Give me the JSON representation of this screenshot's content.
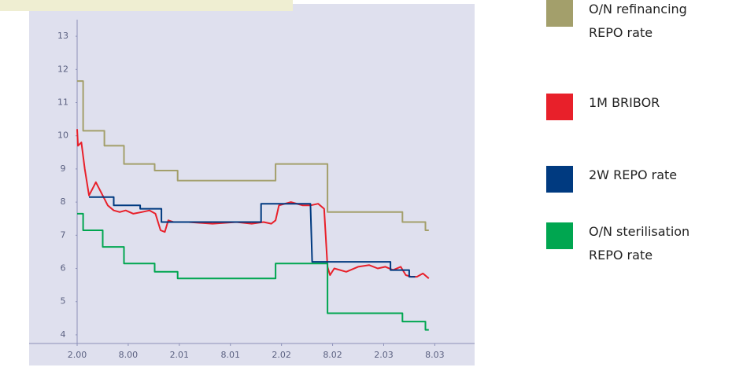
{
  "chart_data": {
    "type": "line",
    "xlim": [
      0,
      46.4
    ],
    "ylim": [
      3.75,
      13.5
    ],
    "xticks": [
      {
        "value": 0,
        "label": "2.00"
      },
      {
        "value": 6,
        "label": "8.00"
      },
      {
        "value": 12,
        "label": "2.01"
      },
      {
        "value": 18,
        "label": "8.01"
      },
      {
        "value": 24,
        "label": "2.02"
      },
      {
        "value": 30,
        "label": "8.02"
      },
      {
        "value": 36,
        "label": "2.03"
      },
      {
        "value": 42,
        "label": "8.03"
      }
    ],
    "yticks": [
      4,
      5,
      6,
      7,
      8,
      9,
      10,
      11,
      12,
      13
    ],
    "series": [
      {
        "name": "O/N refinancing REPO rate",
        "color": "#a39f6b",
        "x": [
          0,
          0.7,
          0.7,
          3.2,
          3.2,
          5.5,
          5.5,
          9.1,
          9.1,
          11.8,
          11.8,
          23.3,
          23.3,
          29.4,
          29.4,
          38.2,
          38.2,
          40.9,
          40.9,
          41.3
        ],
        "values": [
          11.65,
          11.65,
          10.15,
          10.15,
          9.7,
          9.7,
          9.15,
          9.15,
          8.95,
          8.95,
          8.65,
          8.65,
          9.15,
          9.15,
          7.7,
          7.7,
          7.4,
          7.4,
          7.15,
          7.15
        ]
      },
      {
        "name": "1M BRIBOR",
        "color": "#e8202a",
        "x": [
          0,
          0.1,
          0.5,
          0.9,
          1.4,
          1.8,
          2.2,
          2.6,
          3.0,
          3.6,
          4.3,
          5.0,
          5.7,
          6.6,
          7.6,
          8.5,
          9.2,
          9.8,
          10.3,
          10.7,
          11.3,
          13.1,
          15.9,
          18.7,
          20.5,
          21.9,
          22.8,
          23.3,
          23.7,
          25.1,
          26.5,
          27.4,
          28.3,
          29.0,
          29.4,
          29.7,
          30.2,
          31.6,
          33.0,
          34.3,
          35.3,
          36.2,
          37.1,
          38.0,
          38.6,
          39.2,
          39.9,
          40.6,
          41.3
        ],
        "values": [
          10.2,
          9.7,
          9.8,
          9.0,
          8.2,
          8.4,
          8.6,
          8.4,
          8.2,
          7.9,
          7.75,
          7.7,
          7.75,
          7.65,
          7.7,
          7.75,
          7.65,
          7.15,
          7.1,
          7.45,
          7.4,
          7.4,
          7.35,
          7.4,
          7.35,
          7.4,
          7.35,
          7.45,
          7.9,
          8.0,
          7.9,
          7.9,
          7.95,
          7.8,
          6.05,
          5.8,
          6.0,
          5.9,
          6.05,
          6.1,
          6.0,
          6.05,
          5.95,
          6.05,
          5.8,
          5.75,
          5.75,
          5.85,
          5.7
        ]
      },
      {
        "name": "2W REPO rate",
        "color": "#003a80",
        "x": [
          1.4,
          4.3,
          4.3,
          7.4,
          7.4,
          9.9,
          9.9,
          21.6,
          21.6,
          27.4,
          27.6,
          36.8,
          36.8,
          39.0,
          39.0,
          39.7
        ],
        "values": [
          8.15,
          8.15,
          7.9,
          7.9,
          7.8,
          7.8,
          7.4,
          7.4,
          7.95,
          7.95,
          6.2,
          6.2,
          5.95,
          5.95,
          5.75,
          5.75
        ]
      },
      {
        "name": "O/N sterilisation REPO rate",
        "color": "#00a650",
        "x": [
          0,
          0.7,
          0.7,
          3.0,
          3.0,
          5.5,
          5.5,
          9.1,
          9.1,
          11.8,
          11.8,
          23.3,
          23.3,
          29.4,
          29.4,
          38.2,
          38.2,
          40.9,
          40.9,
          41.3
        ],
        "values": [
          7.65,
          7.65,
          7.15,
          7.15,
          6.65,
          6.65,
          6.15,
          6.15,
          5.9,
          5.9,
          5.7,
          5.7,
          6.15,
          6.15,
          4.65,
          4.65,
          4.4,
          4.4,
          4.15,
          4.15
        ]
      }
    ]
  }
}
